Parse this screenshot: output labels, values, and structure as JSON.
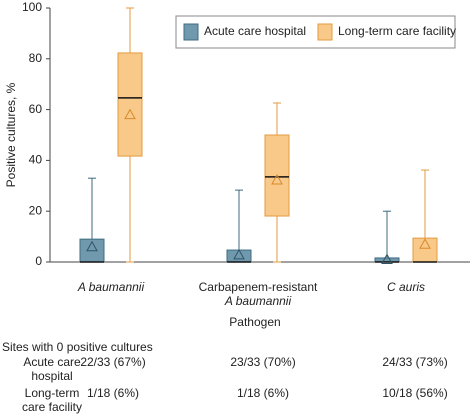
{
  "chart_data": {
    "type": "box",
    "ylabel": "Positive cultures, %",
    "xlabel": "Pathogen",
    "categories": [
      [
        "A baumannii"
      ],
      [
        "Carbapenem-resistant",
        "A baumannii"
      ],
      [
        "C auris"
      ]
    ],
    "ylim": [
      0,
      100
    ],
    "yticks": [
      0,
      20,
      40,
      60,
      80,
      100
    ],
    "legend": "top-right",
    "series": [
      {
        "name": "Acute care hospital",
        "color": "#7199ad",
        "values": [
          {
            "min": 0,
            "q1": 0,
            "median": 0,
            "q3": 9,
            "max": 33,
            "mean": 6
          },
          {
            "min": 0,
            "q1": 0,
            "median": 0,
            "q3": 4.7,
            "max": 28.3,
            "mean": 2.8
          },
          {
            "min": 0,
            "q1": 0,
            "median": 0,
            "q3": 1.6,
            "max": 20,
            "mean": 1
          }
        ]
      },
      {
        "name": "Long-term care facility",
        "color": "#f9c98a",
        "values": [
          {
            "min": 0,
            "q1": 41.7,
            "median": 64.6,
            "q3": 82.3,
            "max": 100,
            "mean": 58
          },
          {
            "min": 0,
            "q1": 18.1,
            "median": 33.5,
            "q3": 50,
            "max": 62.6,
            "mean": 32.3
          },
          {
            "min": 0,
            "q1": 0,
            "median": 0,
            "q3": 9.4,
            "max": 36.2,
            "mean": 7
          }
        ]
      }
    ]
  },
  "table": {
    "title": "Sites with 0 positive cultures",
    "rows": [
      [
        "Acute care hospital",
        "22/33 (67%)",
        "23/33 (70%)",
        "24/33 (73%)"
      ],
      [
        "Long-term care facility",
        "1/18 (6%)",
        "1/18 (6%)",
        "10/18 (56%)"
      ]
    ]
  }
}
